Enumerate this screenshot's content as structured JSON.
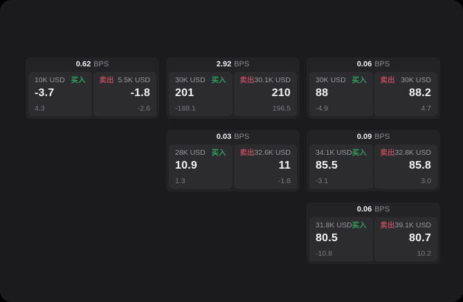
{
  "colors": {
    "backdrop": "#000000",
    "surface": "#1b1b1d",
    "card": "#232326",
    "panel": "#2c2c2e",
    "muted_text": "#98989d",
    "sub_text": "#7c7c81",
    "value_text": "#f5f5f7",
    "buy_green": "#2f9e5f",
    "sell_red": "#b44a5e"
  },
  "labels": {
    "bps": "BPS",
    "buy": "买入",
    "sell": "卖出"
  },
  "cards": [
    {
      "row": 1,
      "col": 1,
      "bps": "0.62",
      "buy": {
        "amount": "10K USD",
        "value": "-3.7",
        "sub": "4.3"
      },
      "sell": {
        "amount": "5.5K USD",
        "value": "-1.8",
        "sub": "-2.6"
      }
    },
    {
      "row": 1,
      "col": 2,
      "bps": "2.92",
      "buy": {
        "amount": "30K USD",
        "value": "201",
        "sub": "-188.1"
      },
      "sell": {
        "amount": "30.1K USD",
        "value": "210",
        "sub": "196.5"
      }
    },
    {
      "row": 1,
      "col": 3,
      "bps": "0.06",
      "buy": {
        "amount": "30K USD",
        "value": "88",
        "sub": "-4.9"
      },
      "sell": {
        "amount": "30K USD",
        "value": "88.2",
        "sub": "4.7"
      }
    },
    {
      "row": 2,
      "col": 2,
      "bps": "0.03",
      "buy": {
        "amount": "28K USD",
        "value": "10.9",
        "sub": "1.3"
      },
      "sell": {
        "amount": "32.6K USD",
        "value": "11",
        "sub": "-1.8"
      }
    },
    {
      "row": 2,
      "col": 3,
      "bps": "0.09",
      "buy": {
        "amount": "34.1K USD",
        "value": "85.5",
        "sub": "-3.1"
      },
      "sell": {
        "amount": "32.8K USD",
        "value": "85.8",
        "sub": "3.0"
      }
    },
    {
      "row": 3,
      "col": 3,
      "bps": "0.06",
      "buy": {
        "amount": "31.8K USD",
        "value": "80.5",
        "sub": "-10.8"
      },
      "sell": {
        "amount": "39.1K USD",
        "value": "80.7",
        "sub": "10.2"
      }
    }
  ]
}
